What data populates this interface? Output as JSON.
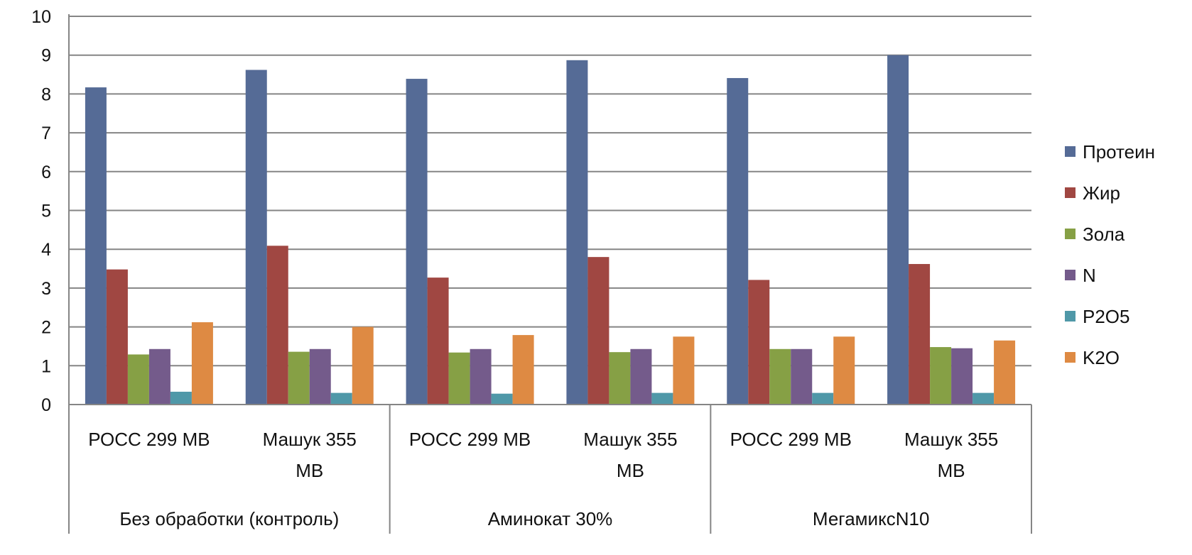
{
  "chart_data": {
    "type": "bar",
    "ylim": [
      0,
      10
    ],
    "yticks": [
      "0",
      "1",
      "2",
      "3",
      "4",
      "5",
      "6",
      "7",
      "8",
      "9",
      "10"
    ],
    "grid": true,
    "legend_position": "right",
    "groups": [
      {
        "label": "Без обработки (контроль)",
        "categories": [
          {
            "label_lines": [
              "РОСС 299 МВ"
            ]
          },
          {
            "label_lines": [
              "Машук 355",
              "МВ"
            ]
          }
        ]
      },
      {
        "label": "Аминокат 30%",
        "categories": [
          {
            "label_lines": [
              "РОСС 299 МВ"
            ]
          },
          {
            "label_lines": [
              "Машук 355",
              "МВ"
            ]
          }
        ]
      },
      {
        "label": "МегамиксN10",
        "categories": [
          {
            "label_lines": [
              "РОСС 299 МВ"
            ]
          },
          {
            "label_lines": [
              "Машук 355",
              "МВ"
            ]
          }
        ]
      }
    ],
    "series": [
      {
        "name": "Протеин",
        "color": "#556b96",
        "values": [
          8.17,
          8.62,
          8.39,
          8.87,
          8.41,
          9.0
        ]
      },
      {
        "name": "Жир",
        "color": "#a04742",
        "values": [
          3.48,
          4.09,
          3.27,
          3.8,
          3.21,
          3.62
        ]
      },
      {
        "name": "Зола",
        "color": "#86a045",
        "values": [
          1.29,
          1.36,
          1.34,
          1.35,
          1.43,
          1.48
        ]
      },
      {
        "name": "N",
        "color": "#745b8b",
        "values": [
          1.43,
          1.43,
          1.43,
          1.43,
          1.43,
          1.45
        ]
      },
      {
        "name": "P2O5",
        "color": "#4f98a8",
        "values": [
          0.33,
          0.3,
          0.28,
          0.3,
          0.3,
          0.3
        ]
      },
      {
        "name": "K2O",
        "color": "#de8a43",
        "values": [
          2.12,
          2.0,
          1.79,
          1.75,
          1.75,
          1.65
        ]
      }
    ]
  }
}
